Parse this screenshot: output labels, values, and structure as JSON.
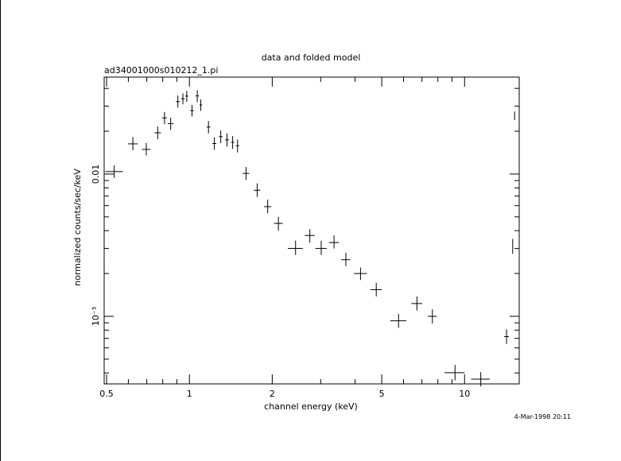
{
  "chart_data": {
    "type": "scatter",
    "title": "data and folded model",
    "subtitle": "ad34001000s010212_1.pi",
    "xlabel": "channel energy (keV)",
    "ylabel": "normalized counts/sec/keV",
    "timestamp": "4-Mar-1998 20:11",
    "x_scale": "log",
    "y_scale": "log",
    "xlim": [
      0.49,
      15.8
    ],
    "ylim": [
      0.000335,
      0.048
    ],
    "x_tick_labels": [
      "0.5",
      "1",
      "2",
      "5",
      "10"
    ],
    "y_tick_labels": [
      "0.01",
      "10⁻³"
    ],
    "grid": false,
    "legend": "none",
    "series": [
      {
        "points": [
          {
            "x": 0.533,
            "y": 0.0104,
            "xerr": [
              0.495,
              0.573
            ],
            "yerr": [
              0.0094,
              0.0115
            ]
          },
          {
            "x": 0.623,
            "y": 0.0163,
            "xerr": [
              0.598,
              0.648
            ],
            "yerr": [
              0.0147,
              0.0182
            ]
          },
          {
            "x": 0.697,
            "y": 0.0149,
            "xerr": [
              0.673,
              0.721
            ],
            "yerr": [
              0.0135,
              0.0165
            ]
          },
          {
            "x": 0.767,
            "y": 0.0195,
            "xerr": [
              0.746,
              0.788
            ],
            "yerr": [
              0.0176,
              0.0216
            ]
          },
          {
            "x": 0.812,
            "y": 0.0248,
            "xerr": [
              0.796,
              0.828
            ],
            "yerr": [
              0.0224,
              0.0273
            ]
          },
          {
            "x": 0.855,
            "y": 0.0226,
            "xerr": [
              0.835,
              0.875
            ],
            "yerr": [
              0.0204,
              0.0249
            ]
          },
          {
            "x": 0.908,
            "y": 0.0323,
            "xerr": [
              0.893,
              0.923
            ],
            "yerr": [
              0.0293,
              0.0356
            ]
          },
          {
            "x": 0.947,
            "y": 0.0338,
            "xerr": [
              0.933,
              0.961
            ],
            "yerr": [
              0.0309,
              0.0369
            ]
          },
          {
            "x": 0.978,
            "y": 0.0353,
            "xerr": [
              0.966,
              0.99
            ],
            "yerr": [
              0.0322,
              0.0384
            ]
          },
          {
            "x": 1.022,
            "y": 0.0279,
            "xerr": [
              1.007,
              1.037
            ],
            "yerr": [
              0.0254,
              0.0305
            ]
          },
          {
            "x": 1.068,
            "y": 0.0354,
            "xerr": [
              1.053,
              1.083
            ],
            "yerr": [
              0.032,
              0.0388
            ]
          },
          {
            "x": 1.1,
            "y": 0.0306,
            "xerr": [
              1.088,
              1.112
            ],
            "yerr": [
              0.0278,
              0.0334
            ]
          },
          {
            "x": 1.173,
            "y": 0.0214,
            "xerr": [
              1.155,
              1.191
            ],
            "yerr": [
              0.0193,
              0.0236
            ]
          },
          {
            "x": 1.232,
            "y": 0.0164,
            "xerr": [
              1.212,
              1.252
            ],
            "yerr": [
              0.0148,
              0.0181
            ]
          },
          {
            "x": 1.3,
            "y": 0.0183,
            "xerr": [
              1.278,
              1.322
            ],
            "yerr": [
              0.0165,
              0.0202
            ]
          },
          {
            "x": 1.37,
            "y": 0.0174,
            "xerr": [
              1.349,
              1.391
            ],
            "yerr": [
              0.0156,
              0.0193
            ]
          },
          {
            "x": 1.436,
            "y": 0.0167,
            "xerr": [
              1.416,
              1.456
            ],
            "yerr": [
              0.015,
              0.0185
            ]
          },
          {
            "x": 1.496,
            "y": 0.0158,
            "xerr": [
              1.476,
              1.516
            ],
            "yerr": [
              0.0142,
              0.0175
            ]
          },
          {
            "x": 1.606,
            "y": 0.0101,
            "xerr": [
              1.562,
              1.65
            ],
            "yerr": [
              0.0091,
              0.0112
            ]
          },
          {
            "x": 1.763,
            "y": 0.0077,
            "xerr": [
              1.716,
              1.81
            ],
            "yerr": [
              0.0069,
              0.0086
            ]
          },
          {
            "x": 1.925,
            "y": 0.0059,
            "xerr": [
              1.867,
              1.983
            ],
            "yerr": [
              0.0053,
              0.0066
            ]
          },
          {
            "x": 2.106,
            "y": 0.0045,
            "xerr": [
              2.028,
              2.184
            ],
            "yerr": [
              0.004,
              0.005
            ]
          },
          {
            "x": 2.431,
            "y": 0.003,
            "xerr": [
              2.28,
              2.582
            ],
            "yerr": [
              0.0027,
              0.0034
            ]
          },
          {
            "x": 2.74,
            "y": 0.0037,
            "xerr": [
              2.628,
              2.852
            ],
            "yerr": [
              0.0033,
              0.0041
            ]
          },
          {
            "x": 3.013,
            "y": 0.003,
            "xerr": [
              2.87,
              3.156
            ],
            "yerr": [
              0.0027,
              0.0034
            ]
          },
          {
            "x": 3.354,
            "y": 0.0033,
            "xerr": [
              3.213,
              3.495
            ],
            "yerr": [
              0.003,
              0.0037
            ]
          },
          {
            "x": 3.704,
            "y": 0.0025,
            "xerr": [
              3.567,
              3.841
            ],
            "yerr": [
              0.00225,
              0.0028
            ]
          },
          {
            "x": 4.187,
            "y": 0.002,
            "xerr": [
              3.961,
              4.413
            ],
            "yerr": [
              0.0018,
              0.0022
            ]
          },
          {
            "x": 4.776,
            "y": 0.00154,
            "xerr": [
              4.547,
              5.005
            ],
            "yerr": [
              0.00138,
              0.00172
            ]
          },
          {
            "x": 5.756,
            "y": 0.00093,
            "xerr": [
              5.37,
              6.142
            ],
            "yerr": [
              0.00083,
              0.00104
            ]
          },
          {
            "x": 6.714,
            "y": 0.00123,
            "xerr": [
              6.408,
              7.02
            ],
            "yerr": [
              0.0011,
              0.00138
            ]
          },
          {
            "x": 7.638,
            "y": 0.001,
            "xerr": [
              7.345,
              7.931
            ],
            "yerr": [
              0.00089,
              0.00112
            ]
          },
          {
            "x": 9.233,
            "y": 0.000402,
            "xerr": [
              8.459,
              10.007
            ],
            "yerr": [
              0.000355,
              0.000455
            ]
          },
          {
            "x": 11.452,
            "y": 0.000362,
            "xerr": [
              10.563,
              12.341
            ],
            "yerr": [
              0.000322,
              0.000405
            ]
          },
          {
            "x": 14.21,
            "y": 0.00072,
            "xerr": [
              13.93,
              14.49
            ],
            "yerr": [
              0.00064,
              0.00081
            ]
          },
          {
            "x": 14.96,
            "y": 0.0031,
            "xerr": [
              14.93,
              14.99
            ],
            "yerr": [
              0.00275,
              0.0035
            ]
          },
          {
            "x": 15.2,
            "y": 0.0257,
            "xerr": [
              15.18,
              15.22
            ],
            "yerr": [
              0.024,
              0.0275
            ]
          }
        ]
      }
    ]
  }
}
